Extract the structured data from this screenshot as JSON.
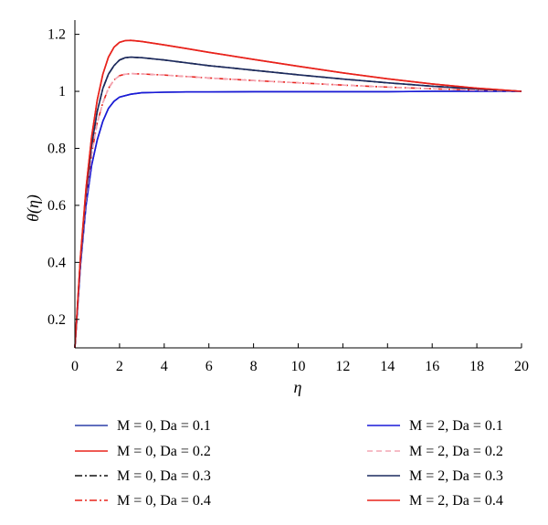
{
  "chart_data": {
    "type": "line",
    "xlabel": "η",
    "ylabel": "θ(η)",
    "xlim": [
      0,
      20
    ],
    "ylim": [
      0.1,
      1.25
    ],
    "xticks": [
      "0",
      "2",
      "4",
      "6",
      "8",
      "10",
      "12",
      "14",
      "16",
      "18",
      "20"
    ],
    "yticks": [
      "0.2",
      "0.4",
      "0.6",
      "0.8",
      "1",
      "1.2"
    ],
    "grid": false,
    "legend_position": "below",
    "series": [
      {
        "name": "M = 0, Da = 0.1",
        "color": "#2b3fa8",
        "dash": "solid",
        "x": [
          0,
          0.25,
          0.5,
          0.75,
          1,
          1.25,
          1.5,
          1.75,
          2,
          2.5,
          3,
          4,
          5,
          6,
          8,
          10,
          12,
          14,
          16,
          18,
          20
        ],
        "y": [
          0.1,
          0.39,
          0.6,
          0.74,
          0.83,
          0.895,
          0.94,
          0.965,
          0.98,
          0.99,
          0.995,
          0.997,
          0.998,
          0.998,
          0.999,
          0.999,
          0.999,
          0.999,
          1.0,
          1.0,
          1.0
        ]
      },
      {
        "name": "M = 0, Da = 0.2",
        "color": "#e8231c",
        "dash": "solid",
        "x": [
          0,
          0.25,
          0.5,
          0.75,
          1,
          1.25,
          1.5,
          1.75,
          2,
          2.25,
          2.5,
          3,
          4,
          5,
          6,
          8,
          10,
          12,
          14,
          16,
          18,
          20
        ],
        "y": [
          0.1,
          0.42,
          0.66,
          0.84,
          0.97,
          1.06,
          1.12,
          1.155,
          1.172,
          1.178,
          1.179,
          1.175,
          1.163,
          1.15,
          1.137,
          1.112,
          1.088,
          1.065,
          1.044,
          1.026,
          1.011,
          1.0
        ]
      },
      {
        "name": "M = 0, Da = 0.3",
        "color": "#111111",
        "dash": "dashdot",
        "x": [
          0,
          0.25,
          0.5,
          0.75,
          1,
          1.25,
          1.5,
          1.75,
          2,
          2.25,
          2.5,
          3,
          4,
          5,
          6,
          8,
          10,
          12,
          14,
          16,
          18,
          20
        ],
        "y": [
          0.1,
          0.41,
          0.64,
          0.81,
          0.93,
          1.01,
          1.06,
          1.09,
          1.11,
          1.118,
          1.12,
          1.118,
          1.11,
          1.1,
          1.09,
          1.074,
          1.058,
          1.043,
          1.03,
          1.018,
          1.008,
          1.0
        ]
      },
      {
        "name": "M = 0, Da = 0.4",
        "color": "#e8231c",
        "dash": "dashdot",
        "x": [
          0,
          0.25,
          0.5,
          0.75,
          1,
          1.25,
          1.5,
          1.75,
          2,
          2.25,
          2.5,
          3,
          4,
          5,
          6,
          8,
          10,
          12,
          14,
          16,
          18,
          20
        ],
        "y": [
          0.1,
          0.4,
          0.62,
          0.78,
          0.89,
          0.96,
          1.01,
          1.04,
          1.055,
          1.06,
          1.062,
          1.061,
          1.057,
          1.052,
          1.047,
          1.038,
          1.03,
          1.022,
          1.015,
          1.009,
          1.004,
          1.0
        ]
      },
      {
        "name": "M = 2, Da = 0.1",
        "color": "#1a1ad8",
        "dash": "solid",
        "x": [
          0,
          0.25,
          0.5,
          0.75,
          1,
          1.25,
          1.5,
          1.75,
          2,
          2.5,
          3,
          4,
          5,
          6,
          8,
          10,
          12,
          14,
          16,
          18,
          20
        ],
        "y": [
          0.1,
          0.39,
          0.6,
          0.74,
          0.83,
          0.895,
          0.94,
          0.965,
          0.98,
          0.99,
          0.995,
          0.997,
          0.998,
          0.998,
          0.999,
          0.999,
          0.999,
          0.999,
          1.0,
          1.0,
          1.0
        ]
      },
      {
        "name": "M = 2, Da = 0.2",
        "color": "#f4a6b4",
        "dash": "dashed",
        "x": [
          0,
          0.25,
          0.5,
          0.75,
          1,
          1.25,
          1.5,
          1.75,
          2,
          2.25,
          2.5,
          3,
          4,
          5,
          6,
          8,
          10,
          12,
          14,
          16,
          18,
          20
        ],
        "y": [
          0.1,
          0.4,
          0.62,
          0.78,
          0.89,
          0.96,
          1.01,
          1.04,
          1.055,
          1.06,
          1.062,
          1.061,
          1.057,
          1.052,
          1.047,
          1.038,
          1.03,
          1.022,
          1.015,
          1.009,
          1.004,
          1.0
        ]
      },
      {
        "name": "M = 2, Da = 0.3",
        "color": "#1c2a5e",
        "dash": "solid",
        "x": [
          0,
          0.25,
          0.5,
          0.75,
          1,
          1.25,
          1.5,
          1.75,
          2,
          2.25,
          2.5,
          3,
          4,
          5,
          6,
          8,
          10,
          12,
          14,
          16,
          18,
          20
        ],
        "y": [
          0.1,
          0.41,
          0.64,
          0.81,
          0.93,
          1.01,
          1.06,
          1.09,
          1.11,
          1.118,
          1.12,
          1.118,
          1.11,
          1.1,
          1.09,
          1.074,
          1.058,
          1.043,
          1.03,
          1.018,
          1.008,
          1.0
        ]
      },
      {
        "name": "M = 2, Da = 0.4",
        "color": "#e8231c",
        "dash": "solid",
        "x": [
          0,
          0.25,
          0.5,
          0.75,
          1,
          1.25,
          1.5,
          1.75,
          2,
          2.25,
          2.5,
          3,
          4,
          5,
          6,
          8,
          10,
          12,
          14,
          16,
          18,
          20
        ],
        "y": [
          0.1,
          0.42,
          0.66,
          0.84,
          0.97,
          1.06,
          1.12,
          1.155,
          1.172,
          1.178,
          1.179,
          1.175,
          1.163,
          1.15,
          1.137,
          1.112,
          1.088,
          1.065,
          1.044,
          1.026,
          1.011,
          1.0
        ]
      }
    ]
  }
}
